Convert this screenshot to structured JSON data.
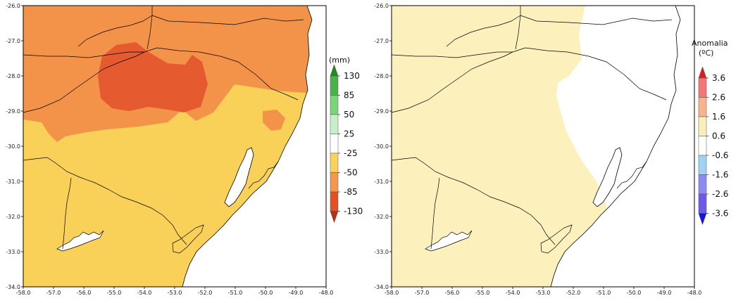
{
  "maps": [
    {
      "id": "precip",
      "x_ticks": [
        "-58.0",
        "-57.0",
        "-56.0",
        "-55.0",
        "-54.0",
        "-53.0",
        "-52.0",
        "-51.0",
        "-50.0",
        "-49.0",
        "-48.0"
      ],
      "y_ticks": [
        "-26.0",
        "-27.0",
        "-28.0",
        "-29.0",
        "-30.0",
        "-31.0",
        "-32.0",
        "-33.0",
        "-34.0"
      ],
      "legend": {
        "title": "",
        "unit": "(mm)",
        "levels": [
          "130",
          "85",
          "50",
          "25",
          "-25",
          "-50",
          "-85",
          "-130"
        ],
        "colors": [
          "#1e8c1e",
          "#48b448",
          "#78d678",
          "#c8f0c8",
          "#ffffff",
          "#fad25a",
          "#f5964b",
          "#e6501e",
          "#b43214",
          "#1a6e1a"
        ]
      }
    },
    {
      "id": "temp",
      "x_ticks": [
        "-58.0",
        "-57.0",
        "-56.0",
        "-55.0",
        "-54.0",
        "-53.0",
        "-52.0",
        "-51.0",
        "-50.0",
        "-49.0",
        "-48.0"
      ],
      "y_ticks": [
        "-26.0",
        "-27.0",
        "-28.0",
        "-29.0",
        "-30.0",
        "-31.0",
        "-32.0",
        "-33.0",
        "-34.0"
      ],
      "legend": {
        "title": "Anomalia",
        "unit": "(ºC)",
        "levels": [
          "3.6",
          "2.6",
          "1.6",
          "0.6",
          "-0.6",
          "-1.6",
          "-2.6",
          "-3.6"
        ],
        "colors": [
          "#dc1e1e",
          "#f07878",
          "#f5b48c",
          "#fbeebe",
          "#ffffff",
          "#a0d2f5",
          "#8c8cf0",
          "#6e5ae6",
          "#1414dc",
          "#e61e1e"
        ]
      }
    }
  ],
  "fills": {
    "ocean": "#ffffff",
    "precip_base": "#f9d058",
    "precip_orange": "#f3934a",
    "precip_red": "#e65a30",
    "temp_base": "#fcf0bc",
    "temp_white": "#ffffff"
  }
}
